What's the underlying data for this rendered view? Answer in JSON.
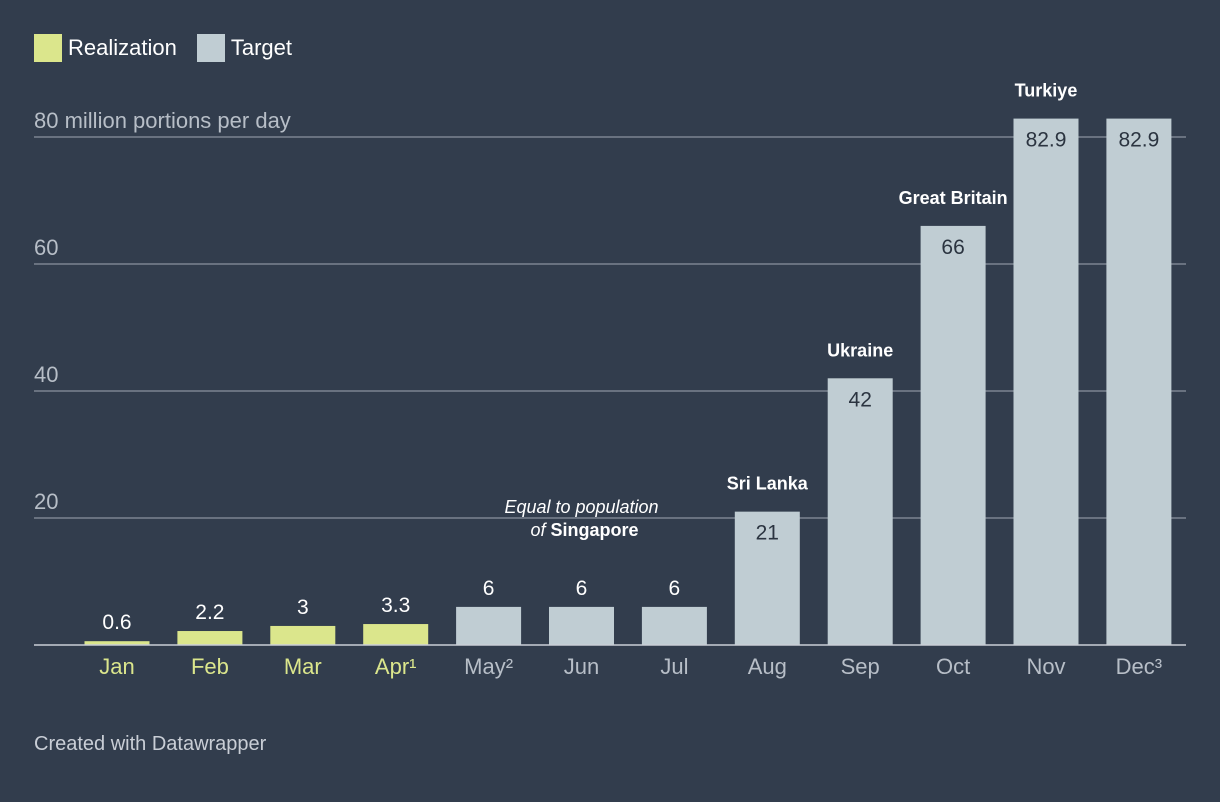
{
  "legend": [
    {
      "label": "Realization",
      "color": "#dbe68c"
    },
    {
      "label": "Target",
      "color": "#c0cdd3"
    }
  ],
  "colors": {
    "background": "#323d4d",
    "realization": "#dbe68c",
    "target": "#c0cdd3",
    "grid": "#8a939e",
    "tick_label": "#b7bec7"
  },
  "chart_data": {
    "type": "bar",
    "categories": [
      "Jan",
      "Feb",
      "Mar",
      "Apr¹",
      "May²",
      "Jun",
      "Jul",
      "Aug",
      "Sep",
      "Oct",
      "Nov",
      "Dec³"
    ],
    "values": [
      0.6,
      2.2,
      3,
      3.3,
      6,
      6,
      6,
      21,
      42,
      66,
      82.9,
      82.9
    ],
    "value_labels": [
      "0.6",
      "2.2",
      "3",
      "3.3",
      "6",
      "6",
      "6",
      "21",
      "42",
      "66",
      "82.9",
      "82.9"
    ],
    "series_types": [
      "realization",
      "realization",
      "realization",
      "realization",
      "target",
      "target",
      "target",
      "target",
      "target",
      "target",
      "target",
      "target"
    ],
    "ylim": [
      0,
      80
    ],
    "yticks": [
      0,
      20,
      40,
      60,
      80
    ],
    "ytick_labels": [
      "",
      "20",
      "40",
      "60",
      "80 million portions per day"
    ],
    "grid": true,
    "legend_position": "top-left",
    "bar_annotations": [
      {
        "category": "Aug",
        "text": "Sri Lanka"
      },
      {
        "category": "Sep",
        "text": "Ukraine"
      },
      {
        "category": "Oct",
        "text": "Great Britain"
      },
      {
        "category": "Nov",
        "text": "Turkiye"
      }
    ],
    "annotation": {
      "over_categories": [
        "May²",
        "Jul"
      ],
      "line1": "Equal to population",
      "line2_prefix": "of",
      "line2_bold": "Singapore"
    }
  },
  "footer": "Created with Datawrapper"
}
